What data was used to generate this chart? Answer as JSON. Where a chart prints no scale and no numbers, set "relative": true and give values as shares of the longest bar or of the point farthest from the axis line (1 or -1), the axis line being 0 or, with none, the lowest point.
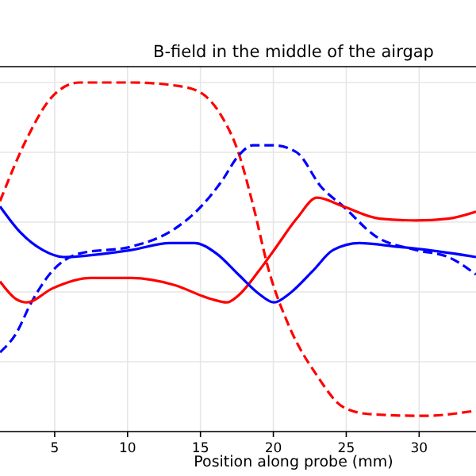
{
  "chart_data": {
    "type": "line",
    "title": "B-field in the middle of the airgap",
    "xlabel": "Position along probe (mm)",
    "relative": true,
    "xlim": [
      1.25,
      33.9
    ],
    "xticks": [
      5,
      10,
      15,
      20,
      25,
      30
    ],
    "grid": true,
    "series": [
      {
        "color": "#ff0000",
        "line_style": "dashed",
        "x": [
          1.25,
          3.1,
          4.84,
          6.7,
          10.27,
          13.5,
          15.05,
          16.5,
          17.6,
          18.6,
          19.7,
          21.1,
          23.0,
          24.8,
          26.6,
          30.3,
          33.9
        ],
        "values": [
          0.66,
          0.84,
          0.96,
          1.0,
          1.0,
          0.99,
          0.97,
          0.9,
          0.8,
          0.65,
          0.46,
          0.3,
          0.16,
          0.07,
          0.05,
          0.045,
          0.06
        ]
      },
      {
        "color": "#0000ff",
        "line_style": "dashed",
        "x": [
          1.25,
          2.34,
          3.4,
          4.84,
          6.7,
          10.27,
          13.2,
          15.05,
          16.5,
          17.6,
          18.6,
          20.05,
          21.6,
          23.3,
          24.8,
          27.0,
          29.8,
          32.0,
          33.9
        ],
        "values": [
          0.227,
          0.28,
          0.37,
          0.46,
          0.51,
          0.53,
          0.58,
          0.645,
          0.72,
          0.79,
          0.82,
          0.82,
          0.8,
          0.7,
          0.645,
          0.56,
          0.52,
          0.5,
          0.45
        ]
      },
      {
        "color": "#ff0000",
        "line_style": "solid",
        "x": [
          1.25,
          2.34,
          3.1,
          4.84,
          7.45,
          10.27,
          13.2,
          15.7,
          16.8,
          17.6,
          19.0,
          20.05,
          21.6,
          23.0,
          24.8,
          27.3,
          29.8,
          32.0,
          33.9
        ],
        "values": [
          0.43,
          0.38,
          0.37,
          0.41,
          0.44,
          0.44,
          0.42,
          0.38,
          0.37,
          0.39,
          0.46,
          0.52,
          0.61,
          0.67,
          0.645,
          0.61,
          0.605,
          0.61,
          0.63
        ]
      },
      {
        "color": "#0000ff",
        "line_style": "solid",
        "x": [
          1.25,
          2.66,
          4.18,
          5.6,
          8.5,
          10.27,
          12.9,
          14.6,
          16.1,
          17.6,
          19.0,
          20.05,
          21.1,
          22.7,
          24.1,
          25.9,
          28.4,
          30.6,
          33.9
        ],
        "values": [
          0.645,
          0.57,
          0.52,
          0.5,
          0.51,
          0.52,
          0.54,
          0.54,
          0.51,
          0.45,
          0.395,
          0.37,
          0.395,
          0.46,
          0.52,
          0.54,
          0.53,
          0.52,
          0.5
        ]
      }
    ]
  }
}
